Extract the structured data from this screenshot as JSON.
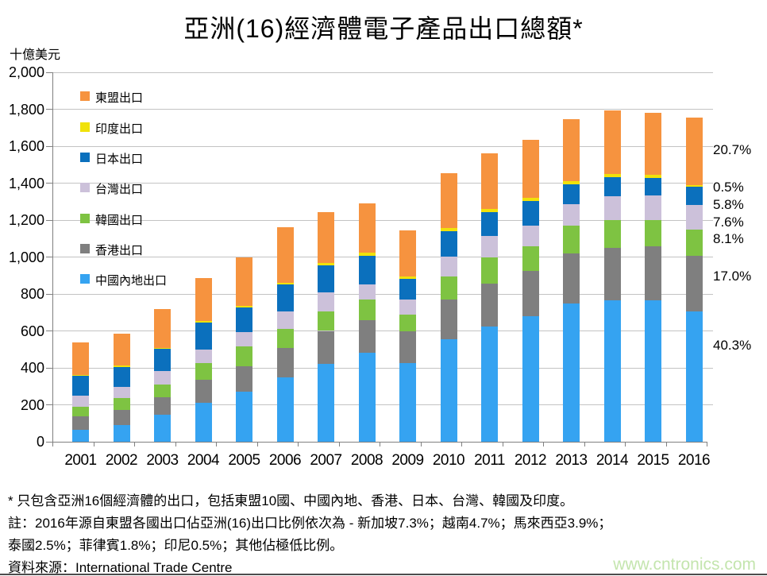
{
  "title": "亞洲(16)經濟體電子產品出口總額*",
  "y_axis": {
    "unit": "十億美元",
    "tick_labels": [
      "0",
      "200",
      "400",
      "600",
      "800",
      "1,000",
      "1,200",
      "1,400",
      "1,600",
      "1,800",
      "2,000"
    ],
    "max": 2000
  },
  "chart_data": {
    "type": "bar",
    "stacked": true,
    "title": "亞洲(16)經濟體電子產品出口總額*",
    "ylabel": "十億美元",
    "ylim": [
      0,
      2000
    ],
    "grid": true,
    "legend_position": "top-left-inside",
    "categories": [
      "2001",
      "2002",
      "2003",
      "2004",
      "2005",
      "2006",
      "2007",
      "2008",
      "2009",
      "2010",
      "2011",
      "2012",
      "2013",
      "2014",
      "2015",
      "2016"
    ],
    "series": [
      {
        "name": "中國內地出口",
        "color": "#35a3f1",
        "values": [
          63,
          92,
          145,
          212,
          271,
          347,
          421,
          481,
          425,
          553,
          625,
          679,
          748,
          767,
          764,
          707
        ]
      },
      {
        "name": "香港出口",
        "color": "#7f7f7f",
        "values": [
          75,
          82,
          96,
          122,
          139,
          160,
          179,
          179,
          173,
          215,
          233,
          247,
          272,
          281,
          293,
          298
        ]
      },
      {
        "name": "韓國出口",
        "color": "#7ec342",
        "values": [
          50,
          64,
          69,
          90,
          104,
          104,
          104,
          111,
          90,
          125,
          139,
          132,
          150,
          152,
          143,
          142
        ]
      },
      {
        "name": "台灣出口",
        "color": "#ccc1da",
        "values": [
          61,
          60,
          74,
          74,
          79,
          93,
          103,
          82,
          83,
          111,
          118,
          110,
          115,
          131,
          134,
          133
        ]
      },
      {
        "name": "日本出口",
        "color": "#0b70bd",
        "values": [
          110,
          108,
          118,
          148,
          135,
          146,
          148,
          155,
          110,
          136,
          130,
          135,
          110,
          102,
          96,
          102
        ]
      },
      {
        "name": "印度出口",
        "color": "#f0e20a",
        "values": [
          4,
          5,
          5,
          6,
          8,
          10,
          12,
          15,
          12,
          15,
          17,
          17,
          15,
          17,
          17,
          9
        ]
      },
      {
        "name": "東盟出口",
        "color": "#f6933f",
        "values": [
          176,
          176,
          210,
          233,
          264,
          300,
          274,
          267,
          252,
          298,
          298,
          315,
          335,
          345,
          333,
          363
        ]
      }
    ]
  },
  "legend": [
    {
      "label": "東盟出口",
      "color": "#f6933f"
    },
    {
      "label": "印度出口",
      "color": "#f0e20a"
    },
    {
      "label": "日本出口",
      "color": "#0b70bd"
    },
    {
      "label": "台灣出口",
      "color": "#ccc1da"
    },
    {
      "label": "韓國出口",
      "color": "#7ec342"
    },
    {
      "label": "香港出口",
      "color": "#7f7f7f"
    },
    {
      "label": "中國內地出口",
      "color": "#35a3f1"
    }
  ],
  "annotations_2016": [
    "20.7%",
    "0.5%",
    "5.8%",
    "7.6%",
    "8.1%",
    "17.0%",
    "40.3%"
  ],
  "footnotes": {
    "line1": "* 只包含亞洲16個經濟體的出口，包括東盟10國、中國內地、香港、日本、台灣、韓國及印度。",
    "line2": "註：2016年源自東盟各國出口佔亞洲(16)出口比例依次為 - 新加坡7.3%；越南4.7%；馬來西亞3.9%；",
    "line3": "泰國2.5%；菲律賓1.8%；印尼0.5%；其他佔極低比例。",
    "source": "資料來源：International Trade Centre"
  },
  "watermark": "www.cntronics.com"
}
